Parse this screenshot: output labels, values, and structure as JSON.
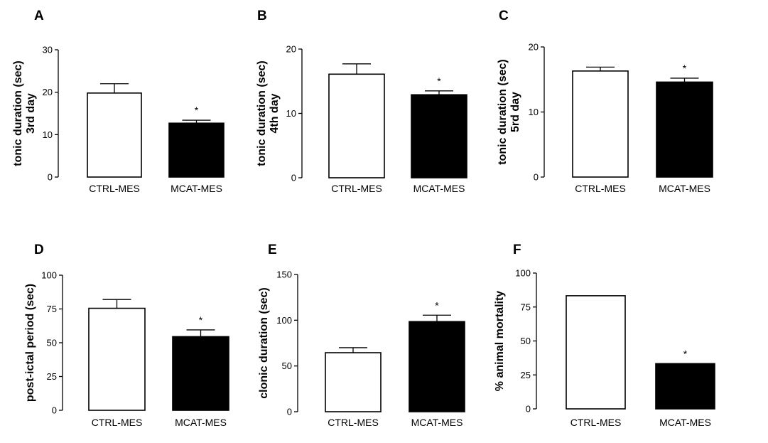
{
  "chart_data": [
    {
      "panel": "A",
      "type": "bar",
      "ylabel_lines": [
        "tonic duration (sec)",
        "3rd day"
      ],
      "categories": [
        "CTRL-MES",
        "MCAT-MES"
      ],
      "values": [
        19.8,
        12.7
      ],
      "errors": [
        2.2,
        0.7
      ],
      "significance": [
        "",
        "*"
      ],
      "ylim": [
        0,
        30
      ],
      "yticks": [
        0,
        10,
        20,
        30
      ],
      "bar_fill": [
        "#ffffff",
        "#000000"
      ]
    },
    {
      "panel": "B",
      "type": "bar",
      "ylabel_lines": [
        "tonic duration (sec)",
        "4th day"
      ],
      "categories": [
        "CTRL-MES",
        "MCAT-MES"
      ],
      "values": [
        16.1,
        12.9
      ],
      "errors": [
        1.6,
        0.6
      ],
      "significance": [
        "",
        "*"
      ],
      "ylim": [
        0,
        20
      ],
      "yticks": [
        0,
        10,
        20
      ],
      "bar_fill": [
        "#ffffff",
        "#000000"
      ]
    },
    {
      "panel": "C",
      "type": "bar",
      "ylabel_lines": [
        "tonic duration (sec)",
        "5rd day"
      ],
      "categories": [
        "CTRL-MES",
        "MCAT-MES"
      ],
      "values": [
        16.3,
        14.6
      ],
      "errors": [
        0.6,
        0.6
      ],
      "significance": [
        "",
        "*"
      ],
      "ylim": [
        0,
        20
      ],
      "yticks": [
        0,
        10,
        20
      ],
      "bar_fill": [
        "#ffffff",
        "#000000"
      ]
    },
    {
      "panel": "D",
      "type": "bar",
      "ylabel_lines": [
        "post-ictal period (sec)"
      ],
      "categories": [
        "CTRL-MES",
        "MCAT-MES"
      ],
      "values": [
        75.5,
        54.5
      ],
      "errors": [
        6.5,
        5.0
      ],
      "significance": [
        "",
        "*"
      ],
      "ylim": [
        0,
        100
      ],
      "yticks": [
        0,
        25,
        50,
        75,
        100
      ],
      "bar_fill": [
        "#ffffff",
        "#000000"
      ]
    },
    {
      "panel": "E",
      "type": "bar",
      "ylabel_lines": [
        "clonic duration (sec)"
      ],
      "categories": [
        "CTRL-MES",
        "MCAT-MES"
      ],
      "values": [
        64.5,
        98.5
      ],
      "errors": [
        5.5,
        7.0
      ],
      "significance": [
        "",
        "*"
      ],
      "ylim": [
        0,
        150
      ],
      "yticks": [
        0,
        50,
        100,
        150
      ],
      "bar_fill": [
        "#ffffff",
        "#000000"
      ]
    },
    {
      "panel": "F",
      "type": "bar",
      "ylabel_lines": [
        "% animal mortality"
      ],
      "categories": [
        "CTRL-MES",
        "MCAT-MES"
      ],
      "values": [
        83.3,
        33.3
      ],
      "errors": [
        0,
        0
      ],
      "significance": [
        "",
        "*"
      ],
      "ylim": [
        0,
        100
      ],
      "yticks": [
        0,
        25,
        50,
        75,
        100
      ],
      "bar_fill": [
        "#ffffff",
        "#000000"
      ]
    }
  ]
}
